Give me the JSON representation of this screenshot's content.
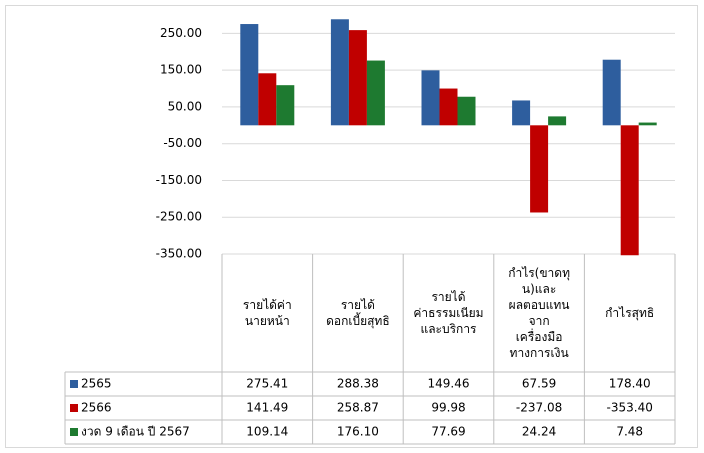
{
  "chart_data": {
    "type": "bar",
    "categories": [
      "รายได้ค่า\nนายหน้า",
      "รายได้\nดอกเบี้ยสุทธิ",
      "รายได้\nค่าธรรมเนียม\nและบริการ",
      "กำไร(ขาดทุ\nน)และ\nผลตอบแทน\nจาก\nเครื่องมือ\nทางการเงิน",
      "กำไรสุทธิ"
    ],
    "series": [
      {
        "name": "2565",
        "color": "#2e5e9e",
        "values": [
          275.41,
          288.38,
          149.46,
          67.59,
          178.4
        ],
        "value_labels": [
          "275.41",
          "288.38",
          "149.46",
          "67.59",
          "178.40"
        ]
      },
      {
        "name": "2566",
        "color": "#c00000",
        "values": [
          141.49,
          258.87,
          99.98,
          -237.08,
          -353.4
        ],
        "value_labels": [
          "141.49",
          "258.87",
          "99.98",
          "-237.08",
          "-353.40"
        ]
      },
      {
        "name": "งวด 9 เดือน ปี 2567",
        "color": "#1e7a30",
        "values": [
          109.14,
          176.1,
          77.69,
          24.24,
          7.48
        ],
        "value_labels": [
          "109.14",
          "176.10",
          "77.69",
          "24.24",
          "7.48"
        ]
      }
    ],
    "ylim": [
      -350,
      300
    ],
    "yticks": [
      {
        "value": 250,
        "label": "250.00"
      },
      {
        "value": 150,
        "label": "150.00"
      },
      {
        "value": 50,
        "label": "50.00"
      },
      {
        "value": -50,
        "label": "-50.00"
      },
      {
        "value": -150,
        "label": "-150.00"
      },
      {
        "value": -250,
        "label": "-250.00"
      },
      {
        "value": -350,
        "label": "-350.00"
      }
    ],
    "grid": true,
    "data_table": true
  }
}
